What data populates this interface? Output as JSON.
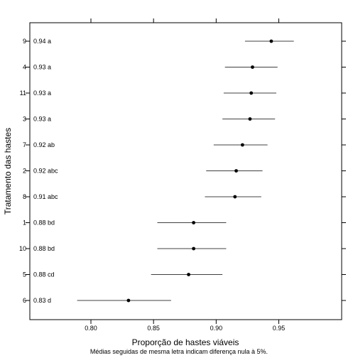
{
  "chart_data": {
    "type": "dot-interval",
    "xlabel": "Proporção de hastes viáveis",
    "ylabel": "Tratamento das hastes",
    "note": "Médias seguidas de mesma letra indicam diferença nula à 5%.",
    "xlim": [
      0.75,
      1.0
    ],
    "x_ticks": [
      "0.80",
      "0.85",
      "0.90",
      "0.95"
    ],
    "grid": false,
    "points": [
      {
        "treatment": "9",
        "label": "0.94 a",
        "mean": 0.944,
        "lower": 0.923,
        "upper": 0.962
      },
      {
        "treatment": "4",
        "label": "0.93 a",
        "mean": 0.929,
        "lower": 0.907,
        "upper": 0.949
      },
      {
        "treatment": "11",
        "label": "0.93 a",
        "mean": 0.928,
        "lower": 0.906,
        "upper": 0.948
      },
      {
        "treatment": "3",
        "label": "0.93 a",
        "mean": 0.927,
        "lower": 0.905,
        "upper": 0.947
      },
      {
        "treatment": "7",
        "label": "0.92 ab",
        "mean": 0.921,
        "lower": 0.898,
        "upper": 0.941
      },
      {
        "treatment": "2",
        "label": "0.92 abc",
        "mean": 0.916,
        "lower": 0.892,
        "upper": 0.937
      },
      {
        "treatment": "8",
        "label": "0.91 abc",
        "mean": 0.915,
        "lower": 0.891,
        "upper": 0.936
      },
      {
        "treatment": "1",
        "label": "0.88 bd",
        "mean": 0.882,
        "lower": 0.853,
        "upper": 0.908
      },
      {
        "treatment": "10",
        "label": "0.88 bd",
        "mean": 0.882,
        "lower": 0.853,
        "upper": 0.908
      },
      {
        "treatment": "5",
        "label": "0.88 cd",
        "mean": 0.878,
        "lower": 0.848,
        "upper": 0.905
      },
      {
        "treatment": "6",
        "label": "0.83 d",
        "mean": 0.83,
        "lower": 0.789,
        "upper": 0.864
      }
    ]
  }
}
